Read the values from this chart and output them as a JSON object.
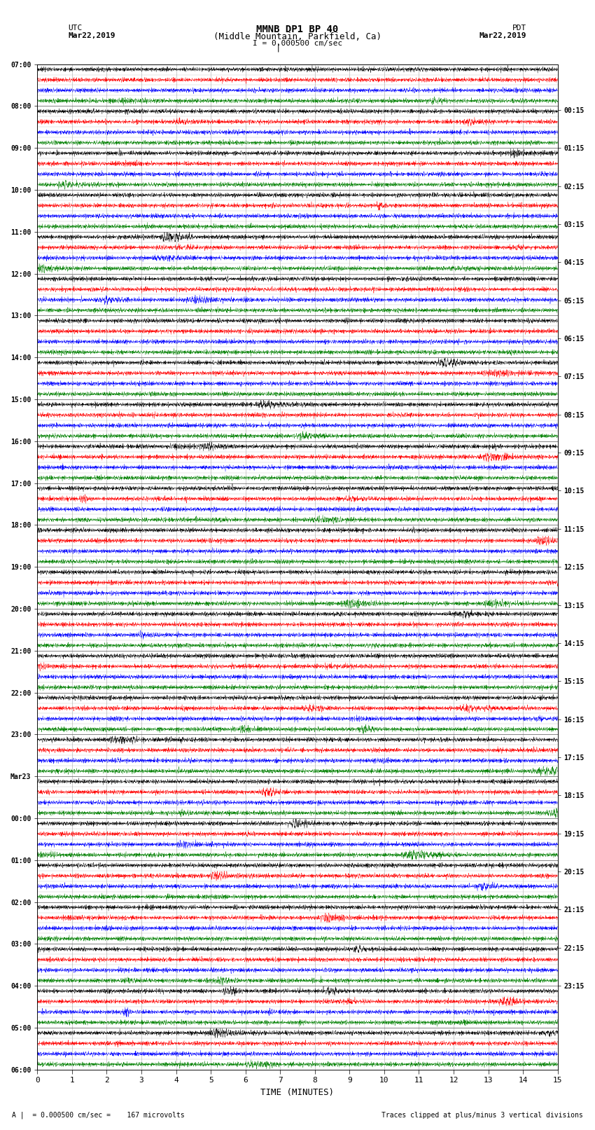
{
  "title_line1": "MMNB DP1 BP 40",
  "title_line2": "(Middle Mountain, Parkfield, Ca)",
  "scale_label": "I = 0.000500 cm/sec",
  "left_header": "UTC",
  "left_date": "Mar22,2019",
  "right_header": "PDT",
  "right_date": "Mar22,2019",
  "xlabel": "TIME (MINUTES)",
  "footer_left": "A |  = 0.000500 cm/sec =    167 microvolts",
  "footer_right": "Traces clipped at plus/minus 3 vertical divisions",
  "utc_labels": [
    "07:00",
    "08:00",
    "09:00",
    "10:00",
    "11:00",
    "12:00",
    "13:00",
    "14:00",
    "15:00",
    "16:00",
    "17:00",
    "18:00",
    "19:00",
    "20:00",
    "21:00",
    "22:00",
    "23:00",
    "Mar23",
    "00:00",
    "01:00",
    "02:00",
    "03:00",
    "04:00",
    "05:00",
    "06:00"
  ],
  "pdt_labels": [
    "00:15",
    "01:15",
    "02:15",
    "03:15",
    "04:15",
    "05:15",
    "06:15",
    "07:15",
    "08:15",
    "09:15",
    "10:15",
    "11:15",
    "12:15",
    "13:15",
    "14:15",
    "15:15",
    "16:15",
    "17:15",
    "18:15",
    "19:15",
    "20:15",
    "21:15",
    "22:15",
    "23:15"
  ],
  "trace_colors": [
    "black",
    "red",
    "blue",
    "green"
  ],
  "n_rows": 96,
  "n_minutes": 15,
  "bg_color": "white",
  "grid_color": "#aaaaaa",
  "major_grid_color": "#555555"
}
